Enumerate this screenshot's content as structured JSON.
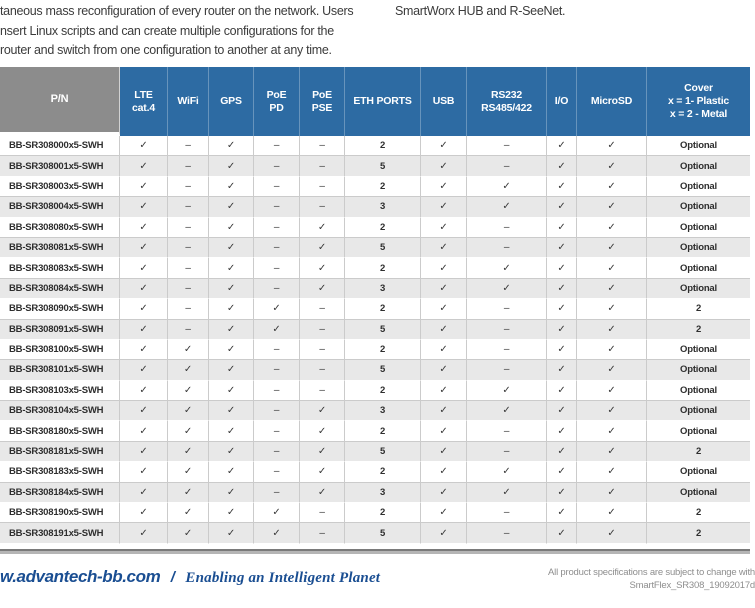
{
  "intro": {
    "left_lines": [
      "taneous mass reconfiguration of every router on the network. Users",
      "nsert Linux scripts and can create multiple configurations for the",
      "router and switch from one configuration to another at any time."
    ],
    "right_text": "SmartWorx HUB and R-SeeNet."
  },
  "table": {
    "columns": [
      {
        "id": "pn",
        "lines": [
          "P/N"
        ]
      },
      {
        "id": "lte",
        "lines": [
          "LTE",
          "cat.4"
        ]
      },
      {
        "id": "wifi",
        "lines": [
          "WiFi"
        ]
      },
      {
        "id": "gps",
        "lines": [
          "GPS"
        ]
      },
      {
        "id": "poe-pd",
        "lines": [
          "PoE",
          "PD"
        ]
      },
      {
        "id": "poe-pse",
        "lines": [
          "PoE",
          "PSE"
        ]
      },
      {
        "id": "eth-ports",
        "lines": [
          "ETH PORTS"
        ]
      },
      {
        "id": "usb",
        "lines": [
          "USB"
        ]
      },
      {
        "id": "rs232",
        "lines": [
          "RS232",
          "RS485/422"
        ]
      },
      {
        "id": "io",
        "lines": [
          "I/O"
        ]
      },
      {
        "id": "microsd",
        "lines": [
          "MicroSD"
        ]
      },
      {
        "id": "cover",
        "lines": [
          "Cover",
          "x = 1- Plastic",
          "x = 2 - Metal"
        ]
      }
    ],
    "rows": [
      {
        "pn": "BB-SR308000x5-SWH",
        "values": [
          "✓",
          "–",
          "✓",
          "–",
          "–",
          "2",
          "✓",
          "–",
          "✓",
          "✓",
          "Optional"
        ]
      },
      {
        "pn": "BB-SR308001x5-SWH",
        "values": [
          "✓",
          "–",
          "✓",
          "–",
          "–",
          "5",
          "✓",
          "–",
          "✓",
          "✓",
          "Optional"
        ]
      },
      {
        "pn": "BB-SR308003x5-SWH",
        "values": [
          "✓",
          "–",
          "✓",
          "–",
          "–",
          "2",
          "✓",
          "✓",
          "✓",
          "✓",
          "Optional"
        ]
      },
      {
        "pn": "BB-SR308004x5-SWH",
        "values": [
          "✓",
          "–",
          "✓",
          "–",
          "–",
          "3",
          "✓",
          "✓",
          "✓",
          "✓",
          "Optional"
        ]
      },
      {
        "pn": "BB-SR308080x5-SWH",
        "values": [
          "✓",
          "–",
          "✓",
          "–",
          "✓",
          "2",
          "✓",
          "–",
          "✓",
          "✓",
          "Optional"
        ]
      },
      {
        "pn": "BB-SR308081x5-SWH",
        "values": [
          "✓",
          "–",
          "✓",
          "–",
          "✓",
          "5",
          "✓",
          "–",
          "✓",
          "✓",
          "Optional"
        ]
      },
      {
        "pn": "BB-SR308083x5-SWH",
        "values": [
          "✓",
          "–",
          "✓",
          "–",
          "✓",
          "2",
          "✓",
          "✓",
          "✓",
          "✓",
          "Optional"
        ]
      },
      {
        "pn": "BB-SR308084x5-SWH",
        "values": [
          "✓",
          "–",
          "✓",
          "–",
          "✓",
          "3",
          "✓",
          "✓",
          "✓",
          "✓",
          "Optional"
        ]
      },
      {
        "pn": "BB-SR308090x5-SWH",
        "values": [
          "✓",
          "–",
          "✓",
          "✓",
          "–",
          "2",
          "✓",
          "–",
          "✓",
          "✓",
          "2"
        ]
      },
      {
        "pn": "BB-SR308091x5-SWH",
        "values": [
          "✓",
          "–",
          "✓",
          "✓",
          "–",
          "5",
          "✓",
          "–",
          "✓",
          "✓",
          "2"
        ]
      },
      {
        "pn": "BB-SR308100x5-SWH",
        "values": [
          "✓",
          "✓",
          "✓",
          "–",
          "–",
          "2",
          "✓",
          "–",
          "✓",
          "✓",
          "Optional"
        ]
      },
      {
        "pn": "BB-SR308101x5-SWH",
        "values": [
          "✓",
          "✓",
          "✓",
          "–",
          "–",
          "5",
          "✓",
          "–",
          "✓",
          "✓",
          "Optional"
        ]
      },
      {
        "pn": "BB-SR308103x5-SWH",
        "values": [
          "✓",
          "✓",
          "✓",
          "–",
          "–",
          "2",
          "✓",
          "✓",
          "✓",
          "✓",
          "Optional"
        ]
      },
      {
        "pn": "BB-SR308104x5-SWH",
        "values": [
          "✓",
          "✓",
          "✓",
          "–",
          "✓",
          "3",
          "✓",
          "✓",
          "✓",
          "✓",
          "Optional"
        ]
      },
      {
        "pn": "BB-SR308180x5-SWH",
        "values": [
          "✓",
          "✓",
          "✓",
          "–",
          "✓",
          "2",
          "✓",
          "–",
          "✓",
          "✓",
          "Optional"
        ]
      },
      {
        "pn": "BB-SR308181x5-SWH",
        "values": [
          "✓",
          "✓",
          "✓",
          "–",
          "✓",
          "5",
          "✓",
          "–",
          "✓",
          "✓",
          "2"
        ]
      },
      {
        "pn": "BB-SR308183x5-SWH",
        "values": [
          "✓",
          "✓",
          "✓",
          "–",
          "✓",
          "2",
          "✓",
          "✓",
          "✓",
          "✓",
          "Optional"
        ]
      },
      {
        "pn": "BB-SR308184x5-SWH",
        "values": [
          "✓",
          "✓",
          "✓",
          "–",
          "✓",
          "3",
          "✓",
          "✓",
          "✓",
          "✓",
          "Optional"
        ]
      },
      {
        "pn": "BB-SR308190x5-SWH",
        "values": [
          "✓",
          "✓",
          "✓",
          "✓",
          "–",
          "2",
          "✓",
          "–",
          "✓",
          "✓",
          "2"
        ]
      },
      {
        "pn": "BB-SR308191x5-SWH",
        "values": [
          "✓",
          "✓",
          "✓",
          "✓",
          "–",
          "5",
          "✓",
          "–",
          "✓",
          "✓",
          "2"
        ]
      }
    ]
  },
  "footer": {
    "website": "w.advantech-bb.com",
    "separator": "/",
    "tagline": "Enabling an Intelligent Planet",
    "note_line1": "All product specifications are subject to change with",
    "note_line2": "SmartFlex_SR308_19092017d"
  },
  "colors": {
    "header_blue": "#2d6ba3",
    "header_gray": "#8c8c8c",
    "row_alt": "#e8e8e8",
    "footer_blue": "#1a4e92"
  }
}
